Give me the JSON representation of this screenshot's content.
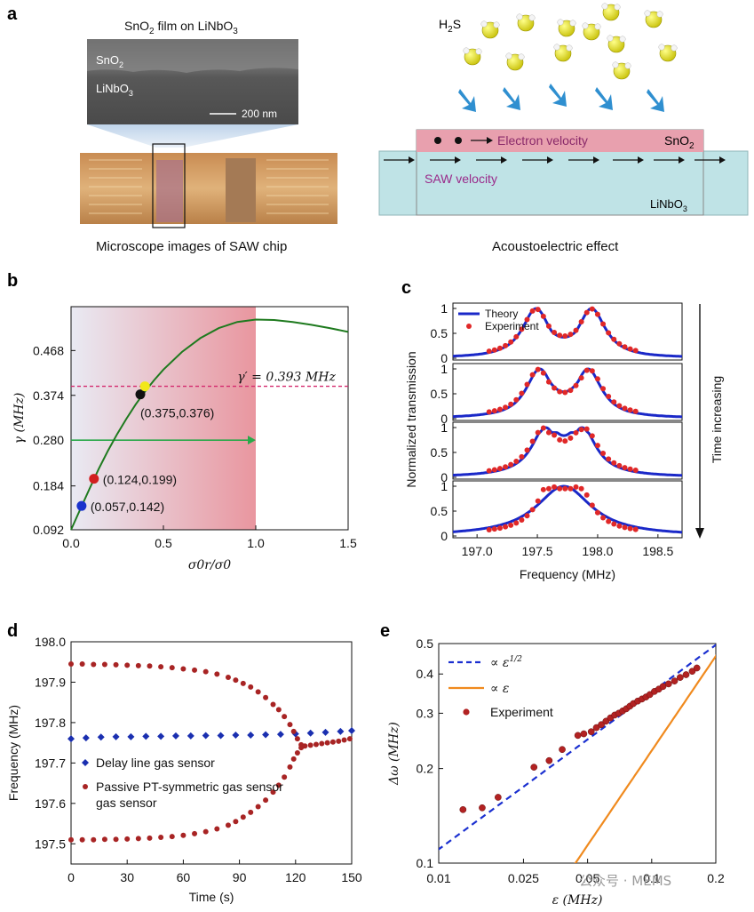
{
  "panels": {
    "a": "a",
    "b": "b",
    "c": "c",
    "d": "d",
    "e": "e"
  },
  "panel_a": {
    "film_title_prefix": "SnO",
    "film_title_sub": "2",
    "film_title_suffix": " film on LiNbO",
    "film_title_sub2": "3",
    "sem_label_sno2": "SnO",
    "sem_label_sno2_sub": "2",
    "sem_label_linbo3": "LiNbO",
    "sem_label_linbo3_sub": "3",
    "scale_bar": "200 nm",
    "microscope_caption": "Microscope images of SAW chip",
    "gas": "H",
    "gas_sub": "2",
    "gas_suffix": "S",
    "electron_velocity": "Electron velocity",
    "film_name": "SnO",
    "film_name_sub": "2",
    "saw_velocity": "SAW velocity",
    "substrate": "LiNbO",
    "substrate_sub": "3",
    "ae_caption": "Acoustoelectric effect",
    "colors": {
      "film": "#e8a0ae",
      "substrate": "#bfe3e6",
      "gas_sphere": "#e6e61a",
      "gas_arrow": "#2f8fd0"
    }
  },
  "chart_data": [
    {
      "panel": "b",
      "type": "line",
      "xlabel": "σ0r/σ0",
      "ylabel": "γ (MHz)",
      "xlim": [
        0.0,
        1.5
      ],
      "ylim": [
        0.092,
        0.56
      ],
      "xticks": [
        "0.0",
        "0.5",
        "1.0",
        "1.5"
      ],
      "yticks": [
        "0.092",
        "0.184",
        "0.280",
        "0.374",
        "0.468"
      ],
      "ytick_values": [
        0.092,
        0.184,
        0.28,
        0.374,
        0.468
      ],
      "xtick_values": [
        0.0,
        0.5,
        1.0,
        1.5
      ],
      "curve": {
        "x": [
          0.0,
          0.05,
          0.1,
          0.15,
          0.2,
          0.25,
          0.3,
          0.35,
          0.4,
          0.45,
          0.5,
          0.6,
          0.7,
          0.8,
          0.9,
          1.0,
          1.1,
          1.2,
          1.3,
          1.4,
          1.5
        ],
        "y": [
          0.092,
          0.135,
          0.178,
          0.22,
          0.258,
          0.293,
          0.325,
          0.355,
          0.382,
          0.406,
          0.428,
          0.465,
          0.494,
          0.515,
          0.528,
          0.533,
          0.532,
          0.528,
          0.522,
          0.515,
          0.507
        ],
        "color": "#1e7a1e"
      },
      "threshold": {
        "y": 0.393,
        "label": "γ′ = 0.393 MHz",
        "color": "#d42a6e"
      },
      "shaded_to_x": 1.0,
      "arrow": {
        "y": 0.28,
        "x_from": 0.0,
        "x_to": 1.0,
        "color": "#2aa84a"
      },
      "points": [
        {
          "x": 0.057,
          "y": 0.142,
          "label": "(0.057,0.142)",
          "color": "#1a33cc"
        },
        {
          "x": 0.124,
          "y": 0.199,
          "label": "(0.124,0.199)",
          "color": "#d21f1f"
        },
        {
          "x": 0.375,
          "y": 0.376,
          "label": "(0.375,0.376)",
          "color": "#111111"
        },
        {
          "x": 0.4,
          "y": 0.393,
          "label": "",
          "color": "#f2e81a"
        }
      ]
    },
    {
      "panel": "c",
      "type": "line",
      "xlabel": "Frequency (MHz)",
      "ylabel": "Normalized transmission",
      "side_label": "Time increasing",
      "xlim": [
        196.8,
        198.7
      ],
      "xticks": [
        "197.0",
        "197.5",
        "198.0",
        "198.5"
      ],
      "xtick_values": [
        197.0,
        197.5,
        198.0,
        198.5
      ],
      "yticks": [
        "0",
        "0.5",
        "1"
      ],
      "legend": [
        "Theory",
        "Experiment"
      ],
      "colors": {
        "theory": "#1a28c8",
        "experiment": "#e02828"
      },
      "subplots": [
        {
          "split": 0.46,
          "dip": 0.78,
          "exp_split": 0.46,
          "exp_dip": 0.8
        },
        {
          "split": 0.4,
          "dip": 0.82,
          "exp_split": 0.42,
          "exp_dip": 0.84
        },
        {
          "split": 0.3,
          "dip": 0.9,
          "exp_split": 0.34,
          "exp_dip": 0.9
        },
        {
          "split": 0.0,
          "dip": 1.0,
          "exp_split": 0.18,
          "exp_dip": 0.96
        }
      ],
      "center": 197.72
    },
    {
      "panel": "d",
      "type": "scatter",
      "xlabel": "Time (s)",
      "ylabel": "Frequency (MHz)",
      "xlim": [
        0,
        150
      ],
      "ylim": [
        197.45,
        198.0
      ],
      "xticks": [
        "0",
        "30",
        "60",
        "90",
        "120",
        "150"
      ],
      "xtick_values": [
        0,
        30,
        60,
        90,
        120,
        150
      ],
      "yticks": [
        "197.5",
        "197.6",
        "197.7",
        "197.8",
        "197.9",
        "198.0"
      ],
      "ytick_values": [
        197.5,
        197.6,
        197.7,
        197.8,
        197.9,
        198.0
      ],
      "series": [
        {
          "name": "Delay line gas sensor",
          "color": "#1a2fb0",
          "marker": "diamond",
          "x": [
            0,
            8,
            16,
            24,
            32,
            40,
            48,
            56,
            64,
            72,
            80,
            88,
            96,
            104,
            112,
            120,
            128,
            136,
            144,
            150
          ],
          "y": [
            197.76,
            197.762,
            197.764,
            197.765,
            197.765,
            197.766,
            197.766,
            197.767,
            197.767,
            197.768,
            197.768,
            197.769,
            197.769,
            197.77,
            197.771,
            197.772,
            197.774,
            197.776,
            197.778,
            197.78
          ]
        },
        {
          "name": "Passive PT-symmetric gas sensor",
          "color": "#a82424",
          "marker": "circle",
          "upper_x": [
            0,
            6,
            12,
            18,
            24,
            30,
            36,
            42,
            48,
            54,
            60,
            66,
            72,
            78,
            84,
            88,
            92,
            96,
            100,
            104,
            108,
            111,
            114,
            117,
            119,
            121,
            123
          ],
          "upper_y": [
            197.945,
            197.945,
            197.944,
            197.944,
            197.943,
            197.942,
            197.941,
            197.94,
            197.938,
            197.936,
            197.933,
            197.93,
            197.926,
            197.92,
            197.912,
            197.905,
            197.897,
            197.888,
            197.876,
            197.862,
            197.845,
            197.832,
            197.815,
            197.795,
            197.778,
            197.76,
            197.745
          ],
          "lower_x": [
            0,
            6,
            12,
            18,
            24,
            30,
            36,
            42,
            48,
            54,
            60,
            66,
            72,
            78,
            84,
            88,
            92,
            96,
            100,
            104,
            108,
            111,
            114,
            117,
            119,
            121,
            123
          ],
          "lower_y": [
            197.51,
            197.51,
            197.51,
            197.511,
            197.511,
            197.512,
            197.513,
            197.514,
            197.516,
            197.518,
            197.521,
            197.525,
            197.53,
            197.537,
            197.546,
            197.555,
            197.566,
            197.578,
            197.592,
            197.608,
            197.628,
            197.645,
            197.665,
            197.69,
            197.71,
            197.725,
            197.738
          ],
          "merged_x": [
            125,
            128,
            131,
            134,
            137,
            140,
            143,
            146,
            149
          ],
          "merged_y": [
            197.742,
            197.744,
            197.746,
            197.748,
            197.75,
            197.752,
            197.754,
            197.757,
            197.76
          ]
        }
      ],
      "legend_label_2b": "gas sensor"
    },
    {
      "panel": "e",
      "type": "scatter",
      "xlabel": "ε (MHz)",
      "ylabel": "Δω (MHz)",
      "xscale": "log",
      "yscale": "log",
      "xlim": [
        0.01,
        0.2
      ],
      "ylim": [
        0.1,
        0.5
      ],
      "xticks": [
        "0.01",
        "0.025",
        "0.05",
        "0.1",
        "0.2"
      ],
      "xtick_values": [
        0.01,
        0.025,
        0.05,
        0.1,
        0.2
      ],
      "yticks": [
        "0.1",
        "0.2",
        "0.3",
        "0.4",
        "0.5"
      ],
      "ytick_values": [
        0.1,
        0.2,
        0.3,
        0.4,
        0.5
      ],
      "legend": [
        {
          "label": "∝ ε",
          "sup": "1/2",
          "color": "#1a2fd0",
          "style": "dashed"
        },
        {
          "label": "∝ ε",
          "sup": "",
          "color": "#f08a1e",
          "style": "solid"
        },
        {
          "label": "Experiment",
          "sup": "",
          "color": "#b22222",
          "style": "marker"
        }
      ],
      "sqrt_fit": {
        "coef": 1.107
      },
      "linear_fit": {
        "coef": 2.28
      },
      "experiment": {
        "x": [
          0.013,
          0.016,
          0.019,
          0.028,
          0.033,
          0.038,
          0.045,
          0.048,
          0.052,
          0.055,
          0.058,
          0.061,
          0.064,
          0.067,
          0.07,
          0.073,
          0.076,
          0.079,
          0.082,
          0.086,
          0.09,
          0.094,
          0.098,
          0.103,
          0.108,
          0.113,
          0.12,
          0.128,
          0.136,
          0.145,
          0.155,
          0.163
        ],
        "y": [
          0.148,
          0.15,
          0.162,
          0.202,
          0.212,
          0.23,
          0.255,
          0.258,
          0.262,
          0.27,
          0.276,
          0.283,
          0.29,
          0.296,
          0.3,
          0.305,
          0.31,
          0.316,
          0.322,
          0.328,
          0.333,
          0.338,
          0.344,
          0.352,
          0.358,
          0.365,
          0.372,
          0.38,
          0.39,
          0.398,
          0.408,
          0.418
        ]
      }
    }
  ],
  "watermark": "公众号 · MEMS"
}
